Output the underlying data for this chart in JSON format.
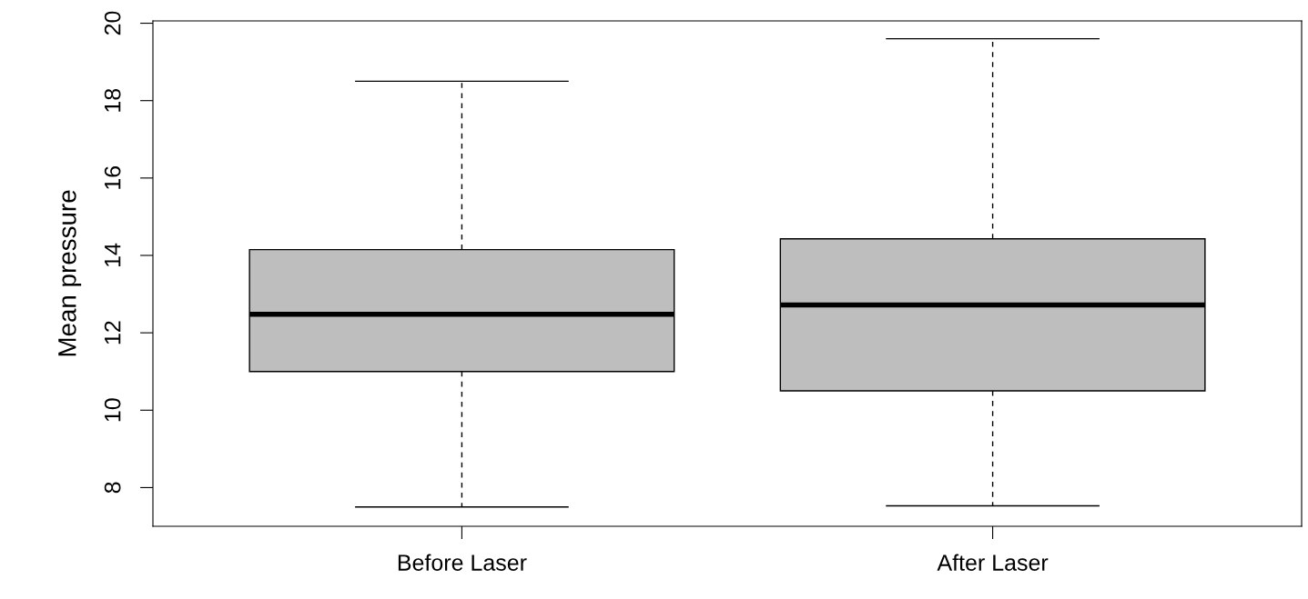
{
  "chart_data": {
    "type": "box",
    "ylabel": "Mean pressure",
    "categories": [
      "Before Laser",
      "After Laser"
    ],
    "boxes": [
      {
        "low": 7.5,
        "q1": 11.0,
        "median": 12.48,
        "q3": 14.15,
        "high": 18.5
      },
      {
        "low": 7.53,
        "q1": 10.5,
        "median": 12.72,
        "q3": 14.43,
        "high": 19.6
      }
    ],
    "color": "#bebebe",
    "ylim": [
      7.0,
      20.06
    ],
    "yticks": [
      8,
      10,
      12,
      14,
      16,
      18,
      20
    ],
    "grid": false
  }
}
